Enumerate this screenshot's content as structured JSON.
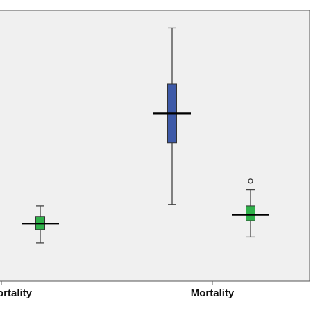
{
  "chart_data": {
    "type": "boxplot",
    "title": "",
    "xlabel": "",
    "ylabel": "",
    "categories": [
      "ortality",
      "Mortality"
    ],
    "groups": [
      {
        "category": "ortality",
        "boxes": [
          {
            "min": 2.1,
            "q1": 2.55,
            "median": 2.75,
            "q3": 3.0,
            "max": 3.35,
            "outliers": [],
            "color": "#2fb14a"
          }
        ]
      },
      {
        "category": "Mortality",
        "boxes": [
          {
            "min": 3.4,
            "q1": 5.5,
            "median": 6.5,
            "q3": 7.5,
            "max": 9.4,
            "outliers": [],
            "color": "#3e5aa8"
          },
          {
            "min": 2.3,
            "q1": 2.85,
            "median": 3.05,
            "q3": 3.35,
            "max": 3.9,
            "outliers": [
              4.2
            ],
            "color": "#2fb14a"
          }
        ]
      }
    ],
    "ylim": [
      0.8,
      10.0
    ],
    "grid": false,
    "legend": "none",
    "colors": {
      "plot_bg": "#f0f0f0",
      "axis": "#555555"
    }
  }
}
